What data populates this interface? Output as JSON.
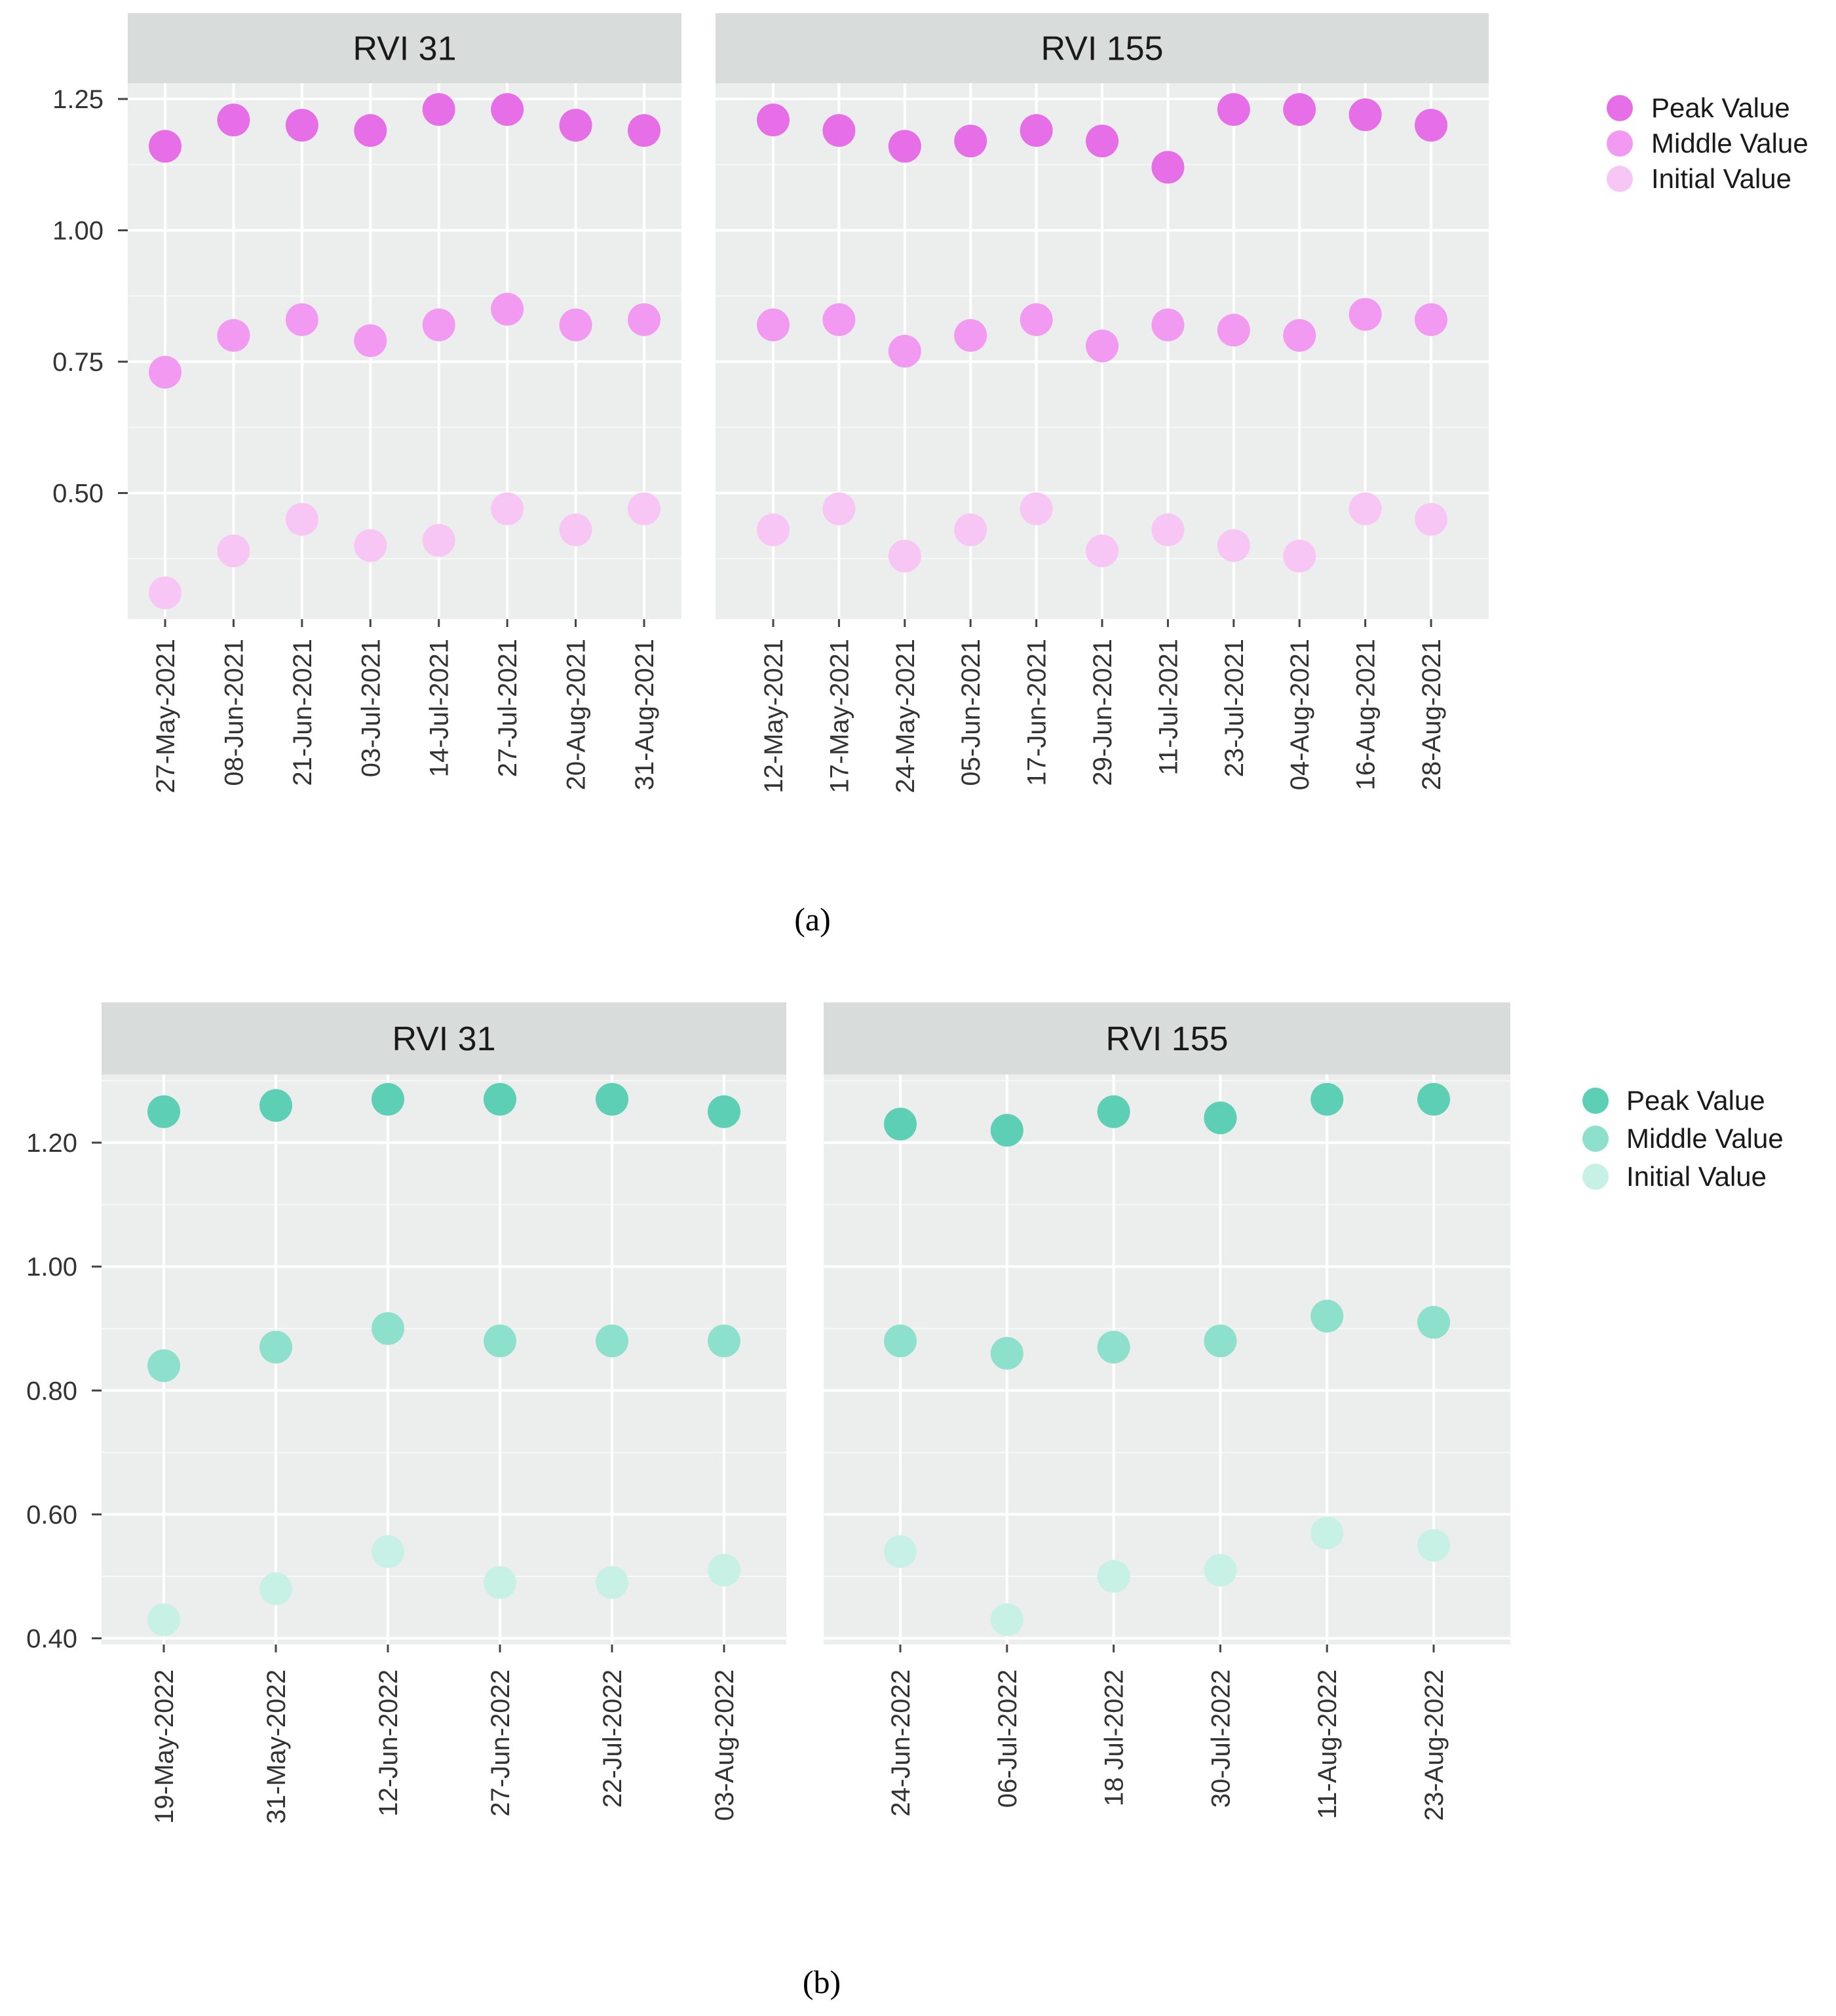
{
  "chart_data": [
    {
      "id": "a",
      "type": "scatter",
      "caption": "(a)",
      "y_ticks": [
        "0.50",
        "0.75",
        "1.00",
        "1.25"
      ],
      "y_tick_values": [
        0.5,
        0.75,
        1.0,
        1.25
      ],
      "ylim": [
        0.26,
        1.28
      ],
      "legend": {
        "entries": [
          "Peak Value",
          "Middle Value",
          "Initial Value"
        ],
        "colors": [
          "#e66ee6",
          "#f29af2",
          "#f8c6f5"
        ]
      },
      "panels": [
        {
          "title": "RVI 31",
          "categories": [
            "27-May-2021",
            "08-Jun-2021",
            "21-Jun-2021",
            "03-Jul-2021",
            "14-Jul-2021",
            "27-Jul-2021",
            "20-Aug-2021",
            "31-Aug-2021"
          ],
          "series": [
            {
              "name": "Peak Value",
              "values": [
                1.16,
                1.21,
                1.2,
                1.19,
                1.23,
                1.23,
                1.2,
                1.19
              ]
            },
            {
              "name": "Middle Value",
              "values": [
                0.73,
                0.8,
                0.83,
                0.79,
                0.82,
                0.85,
                0.82,
                0.83
              ]
            },
            {
              "name": "Initial Value",
              "values": [
                0.31,
                0.39,
                0.45,
                0.4,
                0.41,
                0.47,
                0.43,
                0.47
              ]
            }
          ]
        },
        {
          "title": "RVI 155",
          "categories": [
            "12-May-2021",
            "17-May-2021",
            "24-May-2021",
            "05-Jun-2021",
            "17-Jun-2021",
            "29-Jun-2021",
            "11-Jul-2021",
            "23-Jul-2021",
            "04-Aug-2021",
            "16-Aug-2021",
            "28-Aug-2021"
          ],
          "series": [
            {
              "name": "Peak Value",
              "values": [
                1.21,
                1.19,
                1.16,
                1.17,
                1.19,
                1.17,
                1.12,
                1.23,
                1.23,
                1.22,
                1.2
              ]
            },
            {
              "name": "Middle Value",
              "values": [
                0.82,
                0.83,
                0.77,
                0.8,
                0.83,
                0.78,
                0.82,
                0.81,
                0.8,
                0.84,
                0.83
              ]
            },
            {
              "name": "Initial Value",
              "values": [
                0.43,
                0.47,
                0.38,
                0.43,
                0.47,
                0.39,
                0.43,
                0.4,
                0.38,
                0.47,
                0.45
              ]
            }
          ]
        }
      ]
    },
    {
      "id": "b",
      "type": "scatter",
      "caption": "(b)",
      "y_ticks": [
        "0.40",
        "0.60",
        "0.80",
        "1.00",
        "1.20"
      ],
      "y_tick_values": [
        0.4,
        0.6,
        0.8,
        1.0,
        1.2
      ],
      "ylim": [
        0.39,
        1.31
      ],
      "legend": {
        "entries": [
          "Peak Value",
          "Middle Value",
          "Initial Value"
        ],
        "colors": [
          "#5ccfb4",
          "#8de0cc",
          "#c8f1e6"
        ]
      },
      "panels": [
        {
          "title": "RVI 31",
          "categories": [
            "19-May-2022",
            "31-May-2022",
            "12-Jun-2022",
            "27-Jun-2022",
            "22-Jul-2022",
            "03-Aug-2022"
          ],
          "series": [
            {
              "name": "Peak Value",
              "values": [
                1.25,
                1.26,
                1.27,
                1.27,
                1.27,
                1.25
              ]
            },
            {
              "name": "Middle Value",
              "values": [
                0.84,
                0.87,
                0.9,
                0.88,
                0.88,
                0.88
              ]
            },
            {
              "name": "Initial Value",
              "values": [
                0.43,
                0.48,
                0.54,
                0.49,
                0.49,
                0.51
              ]
            }
          ]
        },
        {
          "title": "RVI 155",
          "categories": [
            "24-Jun-2022",
            "06-Jul-2022",
            "18 Jul-2022",
            "30-Jul-2022",
            "11-Aug-2022",
            "23-Aug-2022"
          ],
          "series": [
            {
              "name": "Peak Value",
              "values": [
                1.23,
                1.22,
                1.25,
                1.24,
                1.27,
                1.27
              ]
            },
            {
              "name": "Middle Value",
              "values": [
                0.88,
                0.86,
                0.87,
                0.88,
                0.92,
                0.91
              ]
            },
            {
              "name": "Initial Value",
              "values": [
                0.54,
                0.43,
                0.5,
                0.51,
                0.57,
                0.55
              ]
            }
          ]
        }
      ]
    }
  ]
}
